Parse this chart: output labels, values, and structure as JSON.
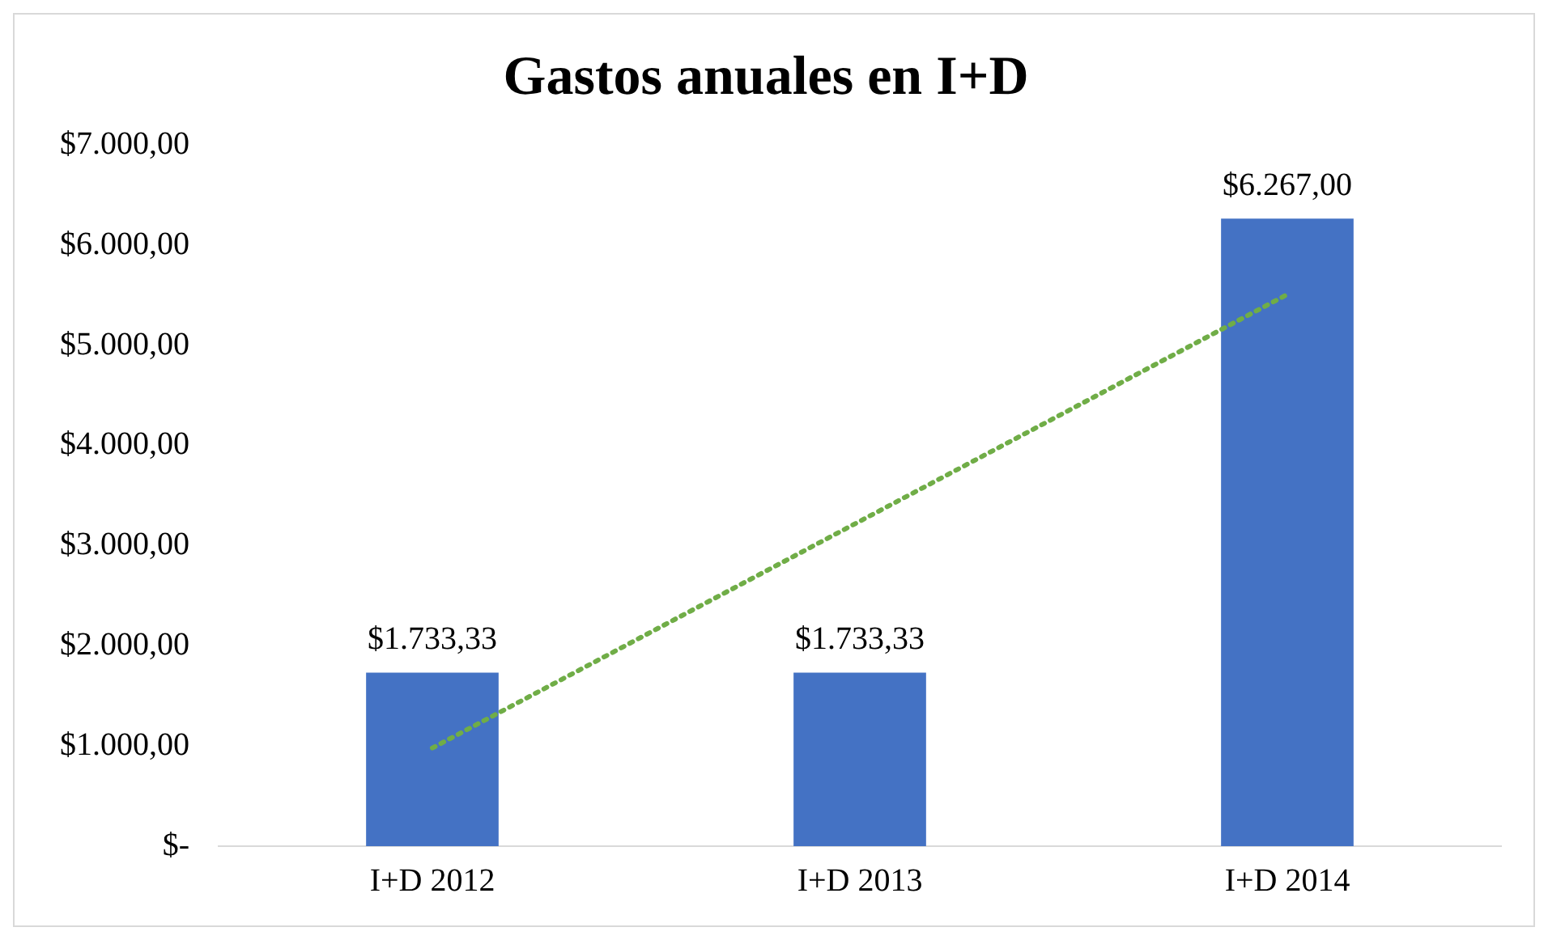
{
  "chart_data": {
    "type": "bar",
    "title": "Gastos anuales en I+D",
    "categories": [
      "I+D 2012",
      "I+D 2013",
      "I+D 2014"
    ],
    "series": [
      {
        "color": "#4472c4",
        "values": [
          1733.33,
          1733.33,
          6267
        ],
        "value_labels": [
          "$1.733,33",
          "$1.733,33",
          "$6.267,00"
        ]
      },
      {
        "type": "line",
        "color": "#70ad47",
        "line_style": "dotted",
        "x": [
          "I+D 2012",
          "I+D 2014"
        ],
        "values": [
          980,
          5510
        ]
      }
    ],
    "ylim": [
      0,
      7000
    ],
    "yticks": [
      {
        "value": 0,
        "label": "$-"
      },
      {
        "value": 1000,
        "label": "$1.000,00"
      },
      {
        "value": 2000,
        "label": "$2.000,00"
      },
      {
        "value": 3000,
        "label": "$3.000,00"
      },
      {
        "value": 4000,
        "label": "$4.000,00"
      },
      {
        "value": 5000,
        "label": "$5.000,00"
      },
      {
        "value": 6000,
        "label": "$6.000,00"
      },
      {
        "value": 7000,
        "label": "$7.000,00"
      }
    ]
  }
}
